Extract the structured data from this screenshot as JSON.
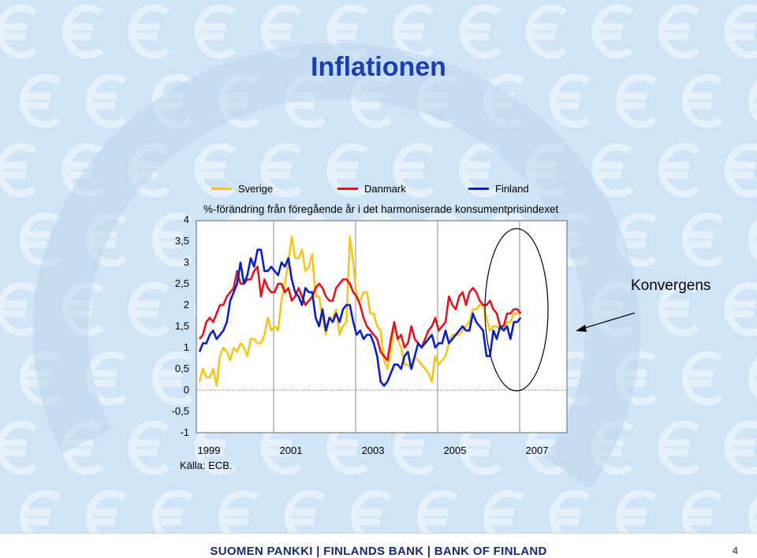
{
  "slide": {
    "title": "Inflationen",
    "annotation": "Konvergens",
    "source": "Källa: ECB.",
    "footer": "SUOMEN PANKKI | FINLANDS BANK | BANK OF FINLAND",
    "page_number": "4",
    "accent_color": "#1a3fae",
    "background_color": "#cfe5f7"
  },
  "chart_data": {
    "type": "line",
    "subtitle": "%-förändring från föregående år i det harmoniserade konsumentprisindexet",
    "x_start": 1999.0,
    "x_step": 0.0833333,
    "xlim": [
      1999.0,
      2007.5
    ],
    "ylim": [
      -1,
      3.5
    ],
    "yticks": [
      "4",
      "3,5",
      "3",
      "2,5",
      "2",
      "1,5",
      "1",
      "0,5",
      "0",
      "-0,5",
      "-1"
    ],
    "xticks": [
      "1999",
      "2001",
      "2003",
      "2005",
      "2007"
    ],
    "grid": false,
    "legend_position": "top",
    "series": [
      {
        "name": "Sverige",
        "color": "#f5c518",
        "values": [
          0.2,
          0.5,
          0.3,
          0.3,
          0.5,
          0.1,
          0.8,
          1.0,
          0.9,
          0.7,
          1.0,
          0.9,
          1.1,
          1.0,
          0.8,
          1.2,
          1.2,
          1.1,
          1.1,
          1.3,
          1.7,
          1.4,
          1.5,
          1.4,
          2.1,
          2.5,
          3.0,
          3.6,
          3.1,
          3.1,
          3.3,
          2.8,
          2.9,
          3.2,
          2.2,
          2.2,
          1.7,
          1.3,
          1.7,
          1.7,
          1.9,
          1.3,
          1.5,
          1.6,
          3.6,
          3.0,
          2.2,
          2.1,
          2.3,
          2.3,
          1.8,
          1.8,
          1.5,
          1.4,
          0.7,
          0.5,
          0.9,
          1.5,
          1.2,
          1.0,
          0.6,
          0.6,
          0.5,
          0.8,
          0.7,
          0.6,
          0.5,
          0.4,
          0.2,
          0.8,
          0.6,
          0.7,
          0.8,
          1.1,
          1.3,
          1.3,
          1.3,
          1.4,
          1.5,
          1.6,
          1.9,
          1.9,
          2.0,
          2.0,
          1.7,
          1.4,
          1.5,
          1.5,
          1.4,
          1.5,
          1.6,
          1.6,
          1.8,
          1.8,
          1.8
        ]
      },
      {
        "name": "Danmark",
        "color": "#e0141e",
        "values": [
          1.2,
          1.3,
          1.6,
          1.7,
          1.6,
          1.8,
          2.0,
          2.0,
          2.2,
          2.3,
          2.4,
          2.8,
          2.5,
          2.5,
          2.6,
          2.6,
          2.8,
          2.9,
          2.2,
          2.6,
          2.4,
          2.3,
          2.3,
          2.5,
          2.5,
          2.3,
          2.4,
          2.1,
          2.2,
          2.4,
          2.2,
          2.0,
          2.1,
          2.2,
          2.4,
          2.5,
          2.4,
          2.2,
          2.1,
          2.1,
          2.4,
          2.5,
          2.6,
          2.6,
          2.5,
          2.3,
          2.2,
          2.0,
          1.7,
          1.5,
          1.4,
          1.3,
          1.2,
          0.9,
          0.8,
          0.7,
          1.2,
          1.6,
          1.2,
          1.3,
          1.0,
          1.1,
          1.5,
          1.2,
          1.1,
          1.0,
          1.2,
          1.4,
          1.5,
          1.7,
          1.4,
          1.5,
          1.6,
          2.2,
          2.0,
          1.9,
          2.2,
          2.3,
          2.0,
          2.3,
          2.4,
          2.3,
          2.1,
          2.0,
          2.0,
          2.1,
          1.9,
          1.8,
          1.5,
          1.5,
          1.8,
          1.8,
          1.9,
          1.9,
          1.8
        ]
      },
      {
        "name": "Finland",
        "color": "#0a1fbf",
        "values": [
          0.9,
          1.1,
          1.1,
          1.3,
          1.4,
          1.2,
          1.3,
          1.4,
          1.6,
          2.1,
          2.3,
          2.5,
          3.0,
          2.5,
          2.7,
          3.1,
          2.9,
          3.3,
          3.3,
          2.8,
          2.8,
          2.9,
          2.8,
          2.7,
          3.0,
          2.9,
          3.1,
          2.6,
          2.3,
          2.2,
          2.0,
          2.4,
          2.3,
          2.3,
          1.7,
          1.5,
          1.9,
          1.4,
          1.7,
          1.6,
          1.8,
          1.6,
          1.9,
          2.0,
          2.0,
          1.6,
          1.3,
          1.4,
          1.2,
          1.3,
          1.3,
          1.1,
          0.8,
          0.2,
          0.1,
          0.2,
          0.4,
          0.6,
          0.6,
          0.5,
          0.8,
          0.9,
          0.5,
          0.8,
          1.1,
          1.0,
          1.1,
          1.2,
          1.3,
          1.0,
          1.1,
          1.1,
          1.4,
          1.1,
          1.2,
          1.3,
          1.4,
          1.5,
          1.4,
          1.4,
          1.8,
          1.6,
          1.5,
          1.4,
          0.8,
          0.8,
          1.4,
          1.2,
          1.5,
          1.4,
          1.5,
          1.2,
          1.6,
          1.6,
          1.7
        ]
      }
    ]
  }
}
